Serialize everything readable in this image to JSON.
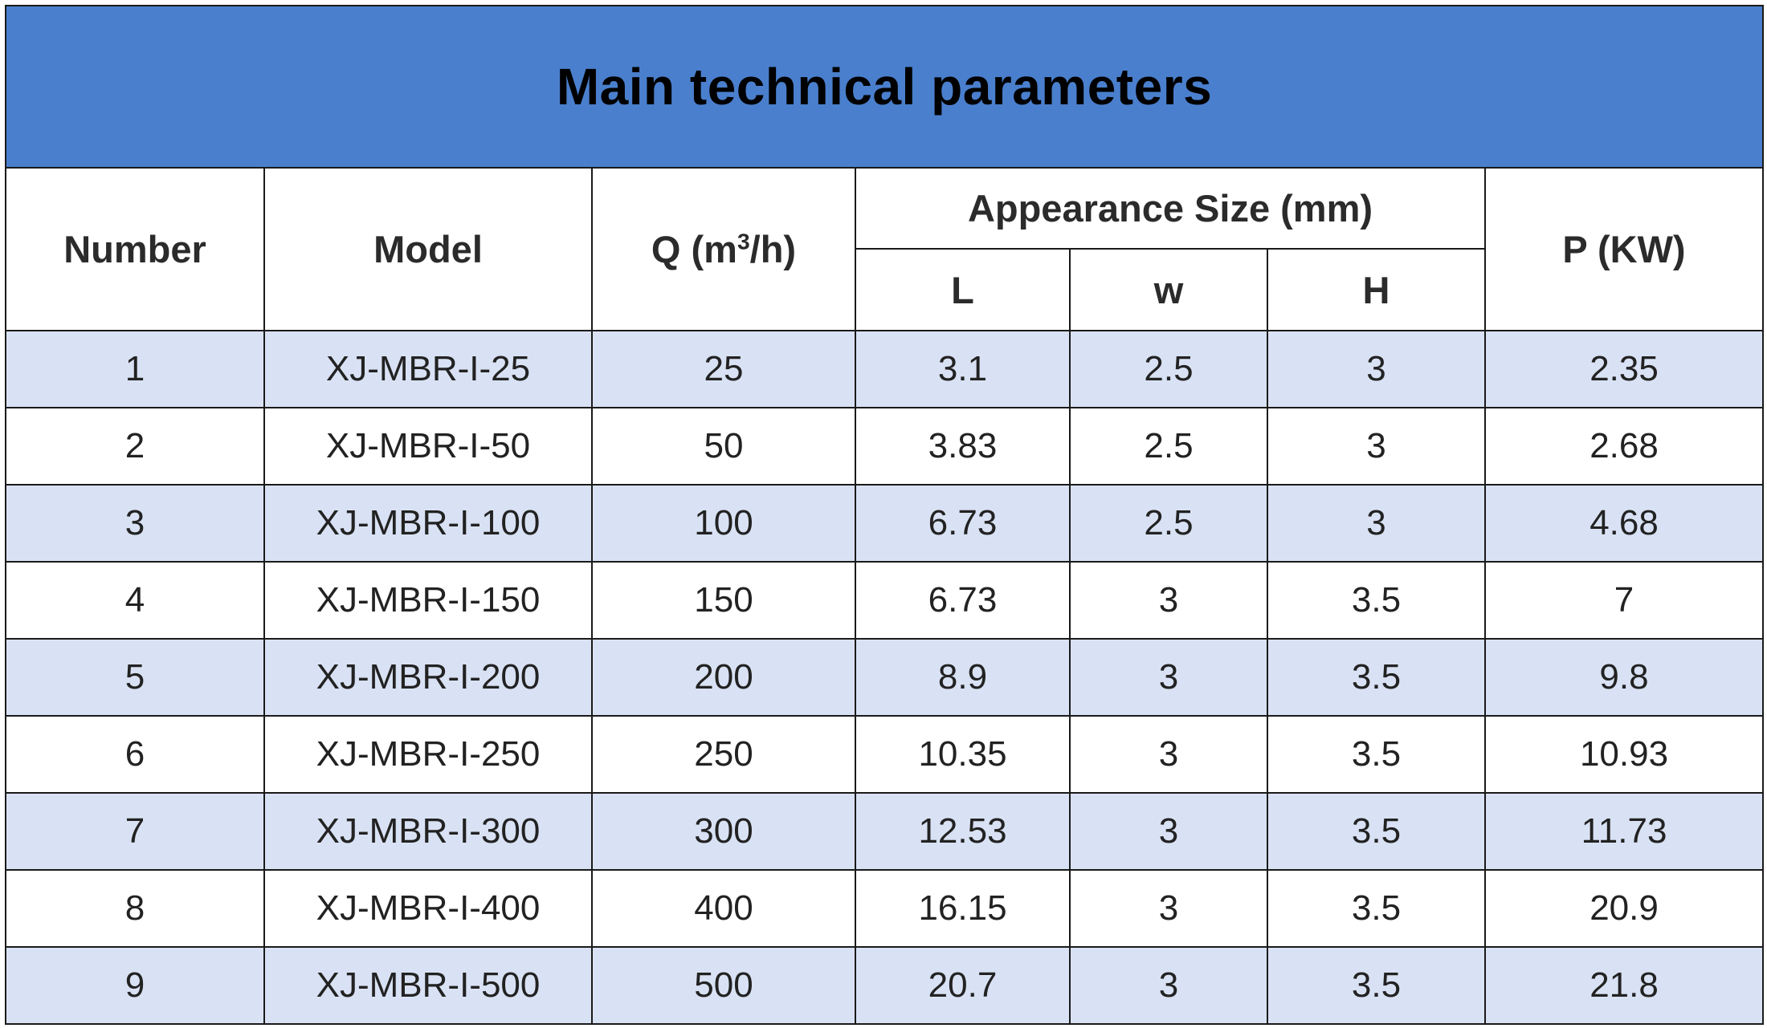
{
  "title": "Main technical parameters",
  "headers": {
    "number": "Number",
    "model": "Model",
    "q_prefix": "Q (m",
    "q_sup": "3",
    "q_suffix": "/h)",
    "appearance": "Appearance Size (mm)",
    "l": "L",
    "w": "w",
    "h": "H",
    "p": "P (KW)"
  },
  "rows": [
    {
      "number": "1",
      "model": "XJ-MBR-I-25",
      "q": "25",
      "l": "3.1",
      "w": "2.5",
      "h": "3",
      "p": "2.35"
    },
    {
      "number": "2",
      "model": "XJ-MBR-I-50",
      "q": "50",
      "l": "3.83",
      "w": "2.5",
      "h": "3",
      "p": "2.68"
    },
    {
      "number": "3",
      "model": "XJ-MBR-I-100",
      "q": "100",
      "l": "6.73",
      "w": "2.5",
      "h": "3",
      "p": "4.68"
    },
    {
      "number": "4",
      "model": "XJ-MBR-I-150",
      "q": "150",
      "l": "6.73",
      "w": "3",
      "h": "3.5",
      "p": "7"
    },
    {
      "number": "5",
      "model": "XJ-MBR-I-200",
      "q": "200",
      "l": "8.9",
      "w": "3",
      "h": "3.5",
      "p": "9.8"
    },
    {
      "number": "6",
      "model": "XJ-MBR-I-250",
      "q": "250",
      "l": "10.35",
      "w": "3",
      "h": "3.5",
      "p": "10.93"
    },
    {
      "number": "7",
      "model": "XJ-MBR-I-300",
      "q": "300",
      "l": "12.53",
      "w": "3",
      "h": "3.5",
      "p": "11.73"
    },
    {
      "number": "8",
      "model": "XJ-MBR-I-400",
      "q": "400",
      "l": "16.15",
      "w": "3",
      "h": "3.5",
      "p": "20.9"
    },
    {
      "number": "9",
      "model": "XJ-MBR-I-500",
      "q": "500",
      "l": "20.7",
      "w": "3",
      "h": "3.5",
      "p": "21.8"
    }
  ],
  "colors": {
    "title_bg": "#4a7fcd",
    "stripe_bg": "#d9e2f4",
    "border": "#1a1a1a"
  }
}
